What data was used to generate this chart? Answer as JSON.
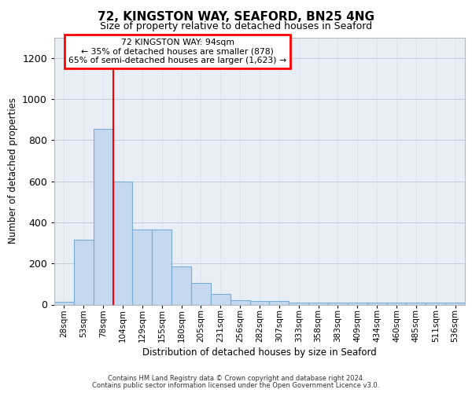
{
  "title1": "72, KINGSTON WAY, SEAFORD, BN25 4NG",
  "title2": "Size of property relative to detached houses in Seaford",
  "xlabel": "Distribution of detached houses by size in Seaford",
  "ylabel": "Number of detached properties",
  "bar_labels": [
    "28sqm",
    "53sqm",
    "78sqm",
    "104sqm",
    "129sqm",
    "155sqm",
    "180sqm",
    "205sqm",
    "231sqm",
    "256sqm",
    "282sqm",
    "307sqm",
    "333sqm",
    "358sqm",
    "383sqm",
    "409sqm",
    "434sqm",
    "460sqm",
    "485sqm",
    "511sqm",
    "536sqm"
  ],
  "bar_values": [
    12,
    315,
    855,
    600,
    365,
    365,
    185,
    105,
    50,
    22,
    18,
    18,
    8,
    8,
    8,
    8,
    8,
    8,
    8,
    8,
    8
  ],
  "bar_color": "#c5d8ef",
  "bar_edgecolor": "#7aadd4",
  "vline_x": 2.5,
  "vline_color": "red",
  "annotation_text": "72 KINGSTON WAY: 94sqm\n← 35% of detached houses are smaller (878)\n65% of semi-detached houses are larger (1,623) →",
  "annotation_box_facecolor": "white",
  "annotation_box_edgecolor": "red",
  "ylim": [
    0,
    1300
  ],
  "yticks": [
    0,
    200,
    400,
    600,
    800,
    1000,
    1200
  ],
  "grid_color": "#c8d0dc",
  "bg_color": "#e8eef6",
  "footer1": "Contains HM Land Registry data © Crown copyright and database right 2024.",
  "footer2": "Contains public sector information licensed under the Open Government Licence v3.0."
}
